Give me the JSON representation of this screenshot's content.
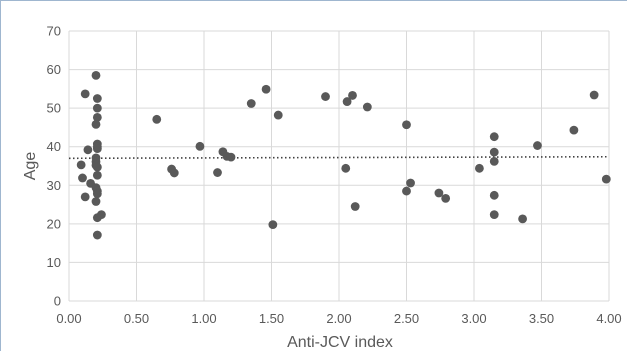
{
  "chart_data": {
    "type": "scatter",
    "title": "",
    "xlabel": "Anti-JCV index",
    "ylabel": "Age",
    "xlim": [
      0,
      4
    ],
    "ylim": [
      0,
      70
    ],
    "x_ticks": [
      "0.00",
      "0.50",
      "1.00",
      "1.50",
      "2.00",
      "2.50",
      "3.00",
      "3.50",
      "4.00"
    ],
    "y_ticks": [
      "0",
      "10",
      "20",
      "30",
      "40",
      "50",
      "60",
      "70"
    ],
    "grid": "vertical and horizontal major gridlines",
    "legend": "none",
    "trendline": {
      "type": "linear",
      "style": "dotted",
      "y_at_0": 37.0,
      "y_at_4": 37.4
    },
    "marker_color": "#595959",
    "points": [
      [
        0.12,
        53.7
      ],
      [
        0.09,
        35.3
      ],
      [
        0.1,
        31.9
      ],
      [
        0.12,
        27.0
      ],
      [
        0.14,
        39.2
      ],
      [
        0.16,
        30.5
      ],
      [
        0.2,
        58.5
      ],
      [
        0.21,
        52.5
      ],
      [
        0.21,
        50.0
      ],
      [
        0.21,
        47.6
      ],
      [
        0.2,
        45.8
      ],
      [
        0.21,
        40.7
      ],
      [
        0.21,
        40.0
      ],
      [
        0.21,
        39.5
      ],
      [
        0.2,
        37.1
      ],
      [
        0.2,
        36.1
      ],
      [
        0.2,
        35.2
      ],
      [
        0.21,
        34.7
      ],
      [
        0.21,
        32.6
      ],
      [
        0.2,
        29.4
      ],
      [
        0.21,
        28.5
      ],
      [
        0.21,
        27.8
      ],
      [
        0.2,
        25.8
      ],
      [
        0.21,
        21.6
      ],
      [
        0.24,
        22.4
      ],
      [
        0.21,
        17.1
      ],
      [
        0.65,
        47.1
      ],
      [
        0.76,
        34.2
      ],
      [
        0.78,
        33.2
      ],
      [
        0.97,
        40.1
      ],
      [
        1.1,
        33.3
      ],
      [
        1.14,
        38.7
      ],
      [
        1.17,
        37.5
      ],
      [
        1.2,
        37.3
      ],
      [
        1.35,
        51.2
      ],
      [
        1.46,
        54.9
      ],
      [
        1.51,
        19.8
      ],
      [
        1.55,
        48.2
      ],
      [
        1.9,
        53.0
      ],
      [
        2.05,
        34.4
      ],
      [
        2.06,
        51.7
      ],
      [
        2.1,
        53.3
      ],
      [
        2.12,
        24.5
      ],
      [
        2.21,
        50.3
      ],
      [
        2.5,
        45.7
      ],
      [
        2.5,
        28.5
      ],
      [
        2.53,
        30.6
      ],
      [
        2.74,
        28.0
      ],
      [
        2.79,
        26.6
      ],
      [
        3.04,
        34.4
      ],
      [
        3.15,
        42.6
      ],
      [
        3.15,
        38.6
      ],
      [
        3.15,
        36.2
      ],
      [
        3.15,
        27.4
      ],
      [
        3.15,
        22.4
      ],
      [
        3.36,
        21.3
      ],
      [
        3.47,
        40.3
      ],
      [
        3.74,
        44.3
      ],
      [
        3.89,
        53.4
      ],
      [
        3.98,
        31.6
      ]
    ]
  }
}
